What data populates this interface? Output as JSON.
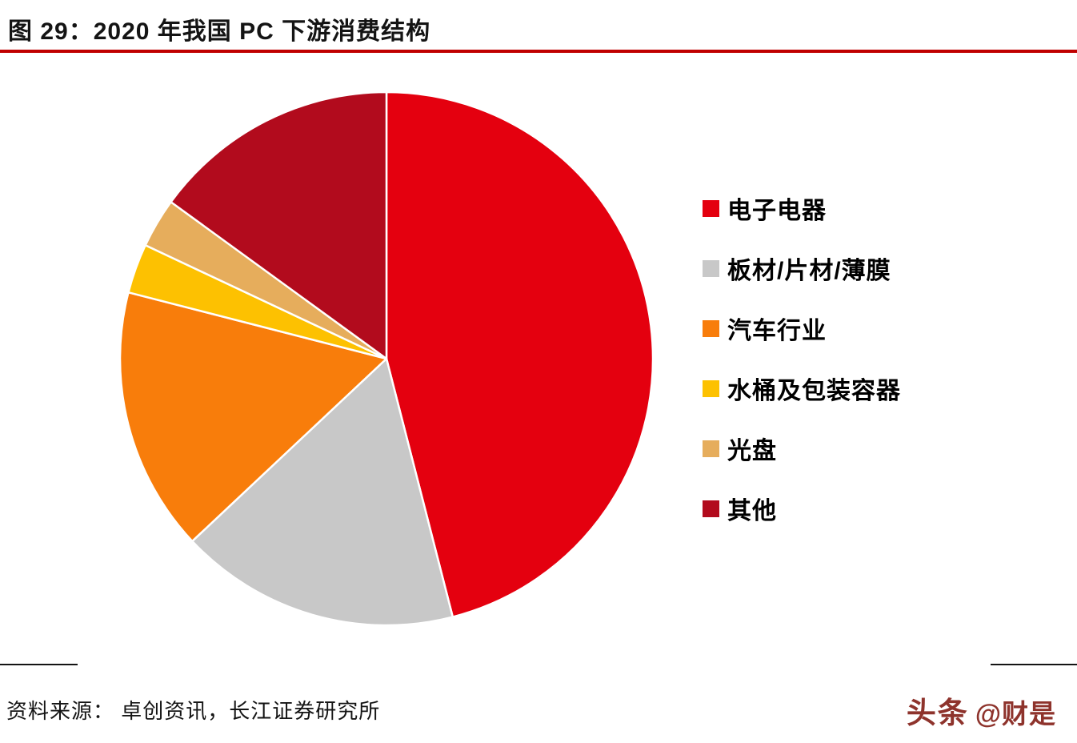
{
  "title": "图 29：2020 年我国 PC 下游消费结构",
  "accent_color": "#c00000",
  "source": "资料来源： 卓创资讯，长江证券研究所",
  "watermark": {
    "brand": "头条",
    "handle": "@财是"
  },
  "chart_data": {
    "type": "pie",
    "title": "2020 年我国 PC 下游消费结构",
    "labels": [
      "电子电器",
      "板材/片材/薄膜",
      "汽车行业",
      "水桶及包装容器",
      "光盘",
      "其他"
    ],
    "values": [
      46,
      17,
      16,
      3,
      3,
      15
    ],
    "units": "%",
    "colors": [
      "#e4000f",
      "#c8c8c8",
      "#f87d0b",
      "#fdc101",
      "#e6ad5c",
      "#b20b1d"
    ],
    "start_angle_deg": -90,
    "direction": "clockwise",
    "slice_border_color": "#ffffff",
    "legend_position": "right",
    "grid": false
  }
}
